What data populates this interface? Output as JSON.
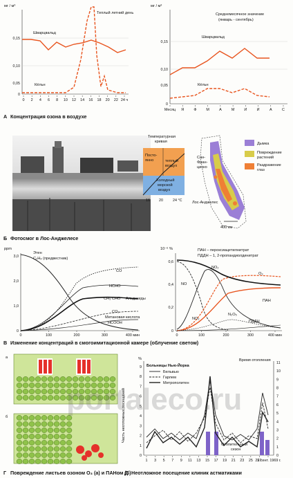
{
  "panelA": {
    "caption_letter": "А",
    "caption": "Концентрация озона в воздухе",
    "left": {
      "unit": "мг / м³",
      "y_ticks": [
        "0,15",
        "0,10",
        "0,05",
        "0"
      ],
      "x_ticks": [
        "0",
        "2",
        "4",
        "6",
        "8",
        "10",
        "12",
        "14",
        "16",
        "18",
        "20",
        "22",
        "24 ч"
      ],
      "label_day": "Теплый летний день",
      "label_schwarzwald": "Шварцвальд",
      "label_koeln": "Кёльн"
    },
    "right": {
      "unit": "мг / м³",
      "title_line1": "Среднемесячное значение",
      "title_line2": "(январь - сентябрь)",
      "y_ticks": [
        "0,15",
        "0,10",
        "0,05",
        "0"
      ],
      "x_ticks": [
        "Месяц",
        "Я",
        "Ф",
        "М",
        "А",
        "М",
        "И",
        "И",
        "А",
        "С"
      ],
      "label_schwarzwald": "Шварцвальд",
      "label_koeln": "Кёльн"
    }
  },
  "panelB": {
    "caption_letter": "Б",
    "caption": "Фотосмог в Лос-Анджелесе",
    "temp_curve_line1": "Температурная",
    "temp_curve_line2": "кривая",
    "const_line1": "Посто-",
    "const_line2": "янно",
    "warm_line1": "теплый",
    "warm_line2": "воздух",
    "cold_line1": "Холодный",
    "cold_line2": "морской",
    "cold_line3": "воздух",
    "temp_ticks": [
      "16",
      "20",
      "24 °С"
    ],
    "map_sf_line1": "Сан-",
    "map_sf_line2": "Фран-",
    "map_sf_line3": "циско",
    "map_la": "Лос-Анджелес",
    "map_scale": "400 км",
    "legend": [
      {
        "label": "Дымка",
        "color": "#9b7fd6"
      },
      {
        "label_line1": "Повреждение",
        "label_line2": "растений",
        "color": "#d8cc4a"
      },
      {
        "label_line1": "Раздражение",
        "label_line2": "глаз",
        "color": "#ef7f35"
      }
    ]
  },
  "panelV": {
    "caption_letter": "В",
    "caption": "Изменение концентраций в смогоимитационной камере (облучение светом)",
    "left": {
      "unit": "ppm",
      "y_ticks": [
        "3,0",
        "2,0",
        "1,0",
        "0"
      ],
      "x_ticks": [
        "0",
        "100",
        "200",
        "300",
        "400 мин"
      ],
      "label_ethene_line1": "Этен",
      "label_ethene_line2": "C₂H₄ (предвестник)",
      "label_co": "CO",
      "label_hcho": "HCHO",
      "label_ch3cho": "CH₃ CHO",
      "label_aldehydes": "Альдегиды",
      "label_co2": "CO₂",
      "label_formic": "Метановая кислота",
      "label_hcooh": "HCOOH"
    },
    "right": {
      "unit": "10⁻⁶ %",
      "y_ticks": [
        "0,6",
        "0,4",
        "0,2",
        "0"
      ],
      "x_ticks": [
        "0",
        "100",
        "200",
        "300",
        "400 мин"
      ],
      "legend_line1": "ПАН – пероксиацетилнитрат",
      "legend_line2": "ПДДН – 1, 2-пропандиолдинитрат",
      "label_no": "NO",
      "label_no2_top": "NO₂",
      "label_no2_bottom": "NO₂",
      "label_o3": "O₃",
      "label_pan": "ПАН",
      "label_n2o5": "N₂O₅",
      "label_pddn": "ПДДН"
    }
  },
  "panelG": {
    "caption_letter": "Г",
    "caption": "Повреждение листьев озоном О₃ (а) и ПАНом (б)",
    "label_a": "а",
    "label_b": "б"
  },
  "panelD": {
    "caption_letter": "Д",
    "caption": "Неотложное посещение клиник астматиками",
    "y_left_unit": "%",
    "y_left_label": "Часть неотложных посещений",
    "y_left_ticks": [
      "9",
      "8",
      "7",
      "6",
      "5",
      "4",
      "3",
      "2",
      "1",
      "0"
    ],
    "y_right_ticks": [
      "11",
      "10",
      "9",
      "8",
      "7",
      "6",
      "5",
      "4",
      "3",
      "2",
      "1",
      "0"
    ],
    "heating_title": "Время отопления",
    "legend_title": "Больницы Нью-Йорка",
    "legend": [
      "Бельвью",
      "Гарлем",
      "Метрополитен"
    ],
    "heating_season_line1": "Отопительный",
    "heating_season_line2": "сезон",
    "x_ticks": [
      "1",
      "3",
      "5",
      "7",
      "9",
      "11",
      "13",
      "15",
      "17",
      "19",
      "21",
      "23",
      "25",
      "27",
      "29 сент. 1969 г."
    ]
  },
  "watermark": "portaleco.ru"
}
